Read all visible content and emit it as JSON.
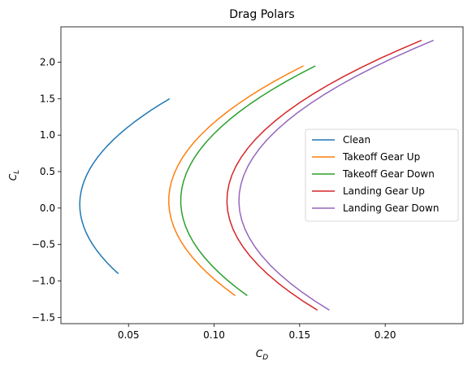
{
  "chart_data": {
    "type": "line",
    "title": "Drag Polars",
    "xlabel_main": "C",
    "xlabel_sub": "D",
    "ylabel_main": "C",
    "ylabel_sub": "L",
    "xlim": [
      0.0105,
      0.2455
    ],
    "ylim": [
      -1.585,
      2.485
    ],
    "xticks": [
      0.05,
      0.1,
      0.15,
      0.2
    ],
    "xtick_labels": [
      "0.05",
      "0.10",
      "0.15",
      "0.20"
    ],
    "yticks": [
      -1.5,
      -1.0,
      -0.5,
      0.0,
      0.5,
      1.0,
      1.5,
      2.0
    ],
    "ytick_labels": [
      "−1.5",
      "−1.0",
      "−0.5",
      "0.0",
      "0.5",
      "1.0",
      "1.5",
      "2.0"
    ],
    "legend_position": "center-right",
    "grid": false,
    "series": [
      {
        "name": "Clean",
        "color": "#1f77b4",
        "cd0": 0.0215,
        "k": 0.025,
        "cl_min": -0.9,
        "cl_max": 1.5,
        "cl_offset": 0.05
      },
      {
        "name": "Takeoff Gear Up",
        "color": "#ff7f0e",
        "cd0": 0.0735,
        "k": 0.023,
        "cl_min": -1.2,
        "cl_max": 1.95,
        "cl_offset": 0.1
      },
      {
        "name": "Takeoff Gear Down",
        "color": "#2ca02c",
        "cd0": 0.0805,
        "k": 0.023,
        "cl_min": -1.2,
        "cl_max": 1.95,
        "cl_offset": 0.1
      },
      {
        "name": "Landing Gear Up",
        "color": "#d62728",
        "cd0": 0.1075,
        "k": 0.0235,
        "cl_min": -1.4,
        "cl_max": 2.3,
        "cl_offset": 0.1
      },
      {
        "name": "Landing Gear Down",
        "color": "#9467bd",
        "cd0": 0.1145,
        "k": 0.0235,
        "cl_min": -1.4,
        "cl_max": 2.3,
        "cl_offset": 0.1
      }
    ]
  }
}
